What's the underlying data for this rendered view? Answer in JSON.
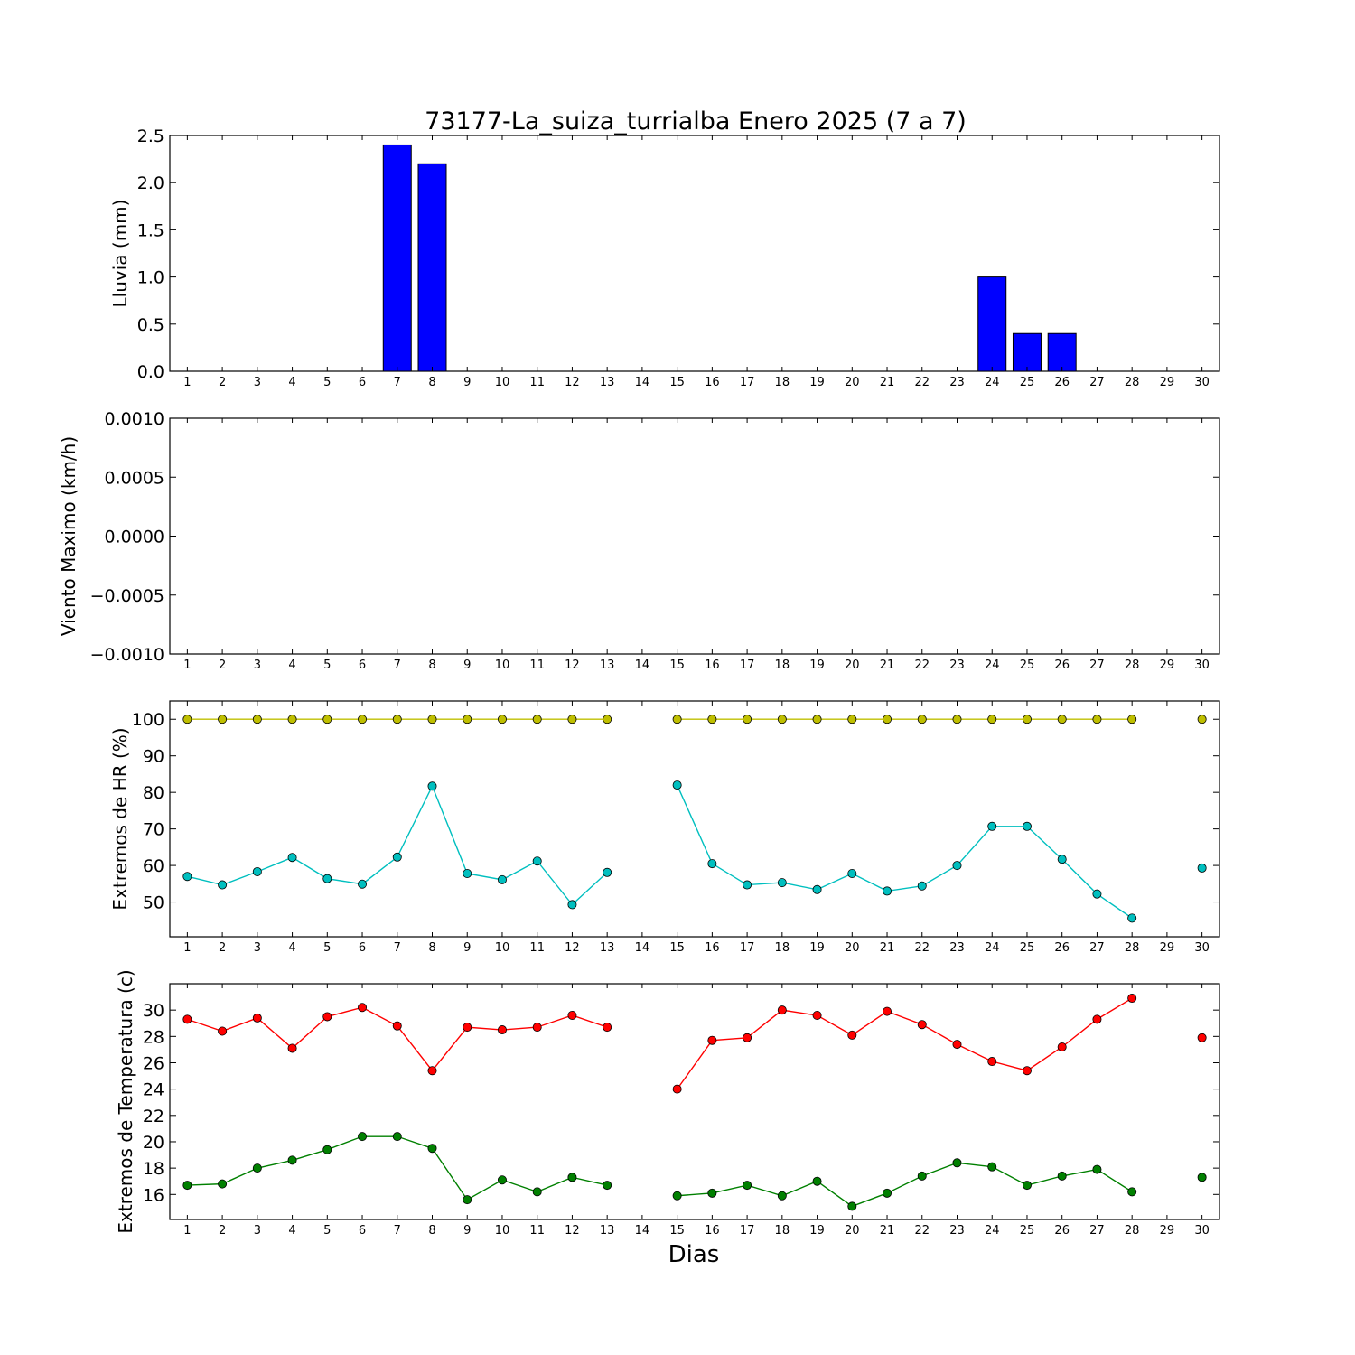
{
  "title": "73177-La_suiza_turrialba Enero 2025  (7 a 7)",
  "xlabel": "Dias",
  "chart_data": [
    {
      "type": "bar",
      "ylabel": "Lluvia (mm)",
      "categories": [
        1,
        2,
        3,
        4,
        5,
        6,
        7,
        8,
        9,
        10,
        11,
        12,
        13,
        14,
        15,
        16,
        17,
        18,
        19,
        20,
        21,
        22,
        23,
        24,
        25,
        26,
        27,
        28,
        29,
        30
      ],
      "ylim": [
        0,
        2.5
      ],
      "yticks": [
        "0.0",
        "0.5",
        "1.0",
        "1.5",
        "2.0",
        "2.5"
      ],
      "grid": false,
      "series": [
        {
          "color": "#0000ff",
          "values": [
            0,
            0,
            0,
            0,
            0,
            0,
            2.4,
            2.2,
            0,
            0,
            0,
            0,
            0,
            0,
            0,
            0,
            0,
            0,
            0,
            0,
            0,
            0,
            0,
            1.0,
            0.4,
            0.4,
            0,
            0,
            0,
            0
          ]
        }
      ]
    },
    {
      "type": "line",
      "ylabel": "Viento Maximo (km/h)",
      "categories": [
        1,
        2,
        3,
        4,
        5,
        6,
        7,
        8,
        9,
        10,
        11,
        12,
        13,
        14,
        15,
        16,
        17,
        18,
        19,
        20,
        21,
        22,
        23,
        24,
        25,
        26,
        27,
        28,
        29,
        30
      ],
      "ylim": [
        -0.001,
        0.001
      ],
      "yticks": [
        "−0.0010",
        "−0.0005",
        "0.0000",
        "0.0005",
        "0.0010"
      ],
      "grid": false,
      "series": []
    },
    {
      "type": "line",
      "ylabel": "Extremos de HR (%)",
      "categories": [
        1,
        2,
        3,
        4,
        5,
        6,
        7,
        8,
        9,
        10,
        11,
        12,
        13,
        14,
        15,
        16,
        17,
        18,
        19,
        20,
        21,
        22,
        23,
        24,
        25,
        26,
        27,
        28,
        29,
        30
      ],
      "ylim": [
        40.5,
        105
      ],
      "yticks": [
        "50",
        "60",
        "70",
        "80",
        "90",
        "100"
      ],
      "grid": false,
      "series": [
        {
          "color": "#bfbf00",
          "values": [
            100,
            100,
            100,
            100,
            100,
            100,
            100,
            100,
            100,
            100,
            100,
            100,
            100,
            null,
            100,
            100,
            100,
            100,
            100,
            100,
            100,
            100,
            100,
            100,
            100,
            100,
            100,
            100,
            null,
            100
          ]
        },
        {
          "color": "#00bfbf",
          "values": [
            57,
            54.7,
            58.3,
            62.2,
            56.4,
            54.9,
            62.3,
            81.7,
            57.8,
            56.1,
            61.2,
            49.3,
            58.1,
            null,
            82,
            60.5,
            54.7,
            55.3,
            53.4,
            57.8,
            53,
            54.4,
            60,
            70.7,
            70.7,
            61.7,
            52.2,
            45.6,
            null,
            59.3
          ]
        }
      ]
    },
    {
      "type": "line",
      "ylabel": "Extremos de Temperatura (c)",
      "categories": [
        1,
        2,
        3,
        4,
        5,
        6,
        7,
        8,
        9,
        10,
        11,
        12,
        13,
        14,
        15,
        16,
        17,
        18,
        19,
        20,
        21,
        22,
        23,
        24,
        25,
        26,
        27,
        28,
        29,
        30
      ],
      "ylim": [
        14.1,
        32
      ],
      "yticks": [
        "16",
        "18",
        "20",
        "22",
        "24",
        "26",
        "28",
        "30"
      ],
      "grid": false,
      "series": [
        {
          "color": "#ff0000",
          "values": [
            29.3,
            28.4,
            29.4,
            27.1,
            29.5,
            30.2,
            28.8,
            25.4,
            28.7,
            28.5,
            28.7,
            29.6,
            28.7,
            null,
            24,
            27.7,
            27.9,
            30,
            29.6,
            28.1,
            29.9,
            28.9,
            27.4,
            26.1,
            25.4,
            27.2,
            29.3,
            30.9,
            null,
            27.9
          ]
        },
        {
          "color": "#008000",
          "values": [
            16.7,
            16.8,
            18,
            18.6,
            19.4,
            20.4,
            20.4,
            19.5,
            15.6,
            17.1,
            16.2,
            17.3,
            16.7,
            null,
            15.9,
            16.1,
            16.7,
            15.9,
            17,
            15.1,
            16.1,
            17.4,
            18.4,
            18.1,
            16.7,
            17.4,
            17.9,
            16.2,
            null,
            17.3
          ]
        }
      ]
    }
  ]
}
